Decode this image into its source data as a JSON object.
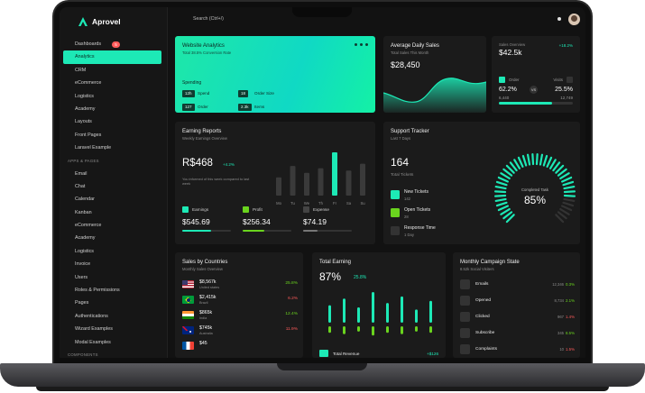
{
  "brand": {
    "name": "Aprovel"
  },
  "search": {
    "placeholder": "Search (Ctrl+/)"
  },
  "sidebar": {
    "items": [
      {
        "label": "Dashboards",
        "badge": "5"
      },
      {
        "label": "Analytics",
        "active": true
      },
      {
        "label": "CRM"
      },
      {
        "label": "eCommerce"
      },
      {
        "label": "Logistics"
      },
      {
        "label": "Academy"
      },
      {
        "label": "Layouts"
      },
      {
        "label": "Front Pages"
      },
      {
        "label": "Laravel Example"
      }
    ],
    "section_apps": "APPS & PAGES",
    "apps": [
      "Email",
      "Chat",
      "Calendar",
      "Kanban",
      "eCommerce",
      "Academy",
      "Logistics",
      "Invoice",
      "Users",
      "Roles & Permissions",
      "Pages",
      "Authentications",
      "Wizard Examples",
      "Modal Examples"
    ],
    "section_components": "COMPONENTS"
  },
  "website_analytics": {
    "title": "Website Analytics",
    "subtitle": "Total 38.5% Conversion Rate",
    "spending_label": "Spending",
    "stats": [
      {
        "value": "12h",
        "label": "Spend"
      },
      {
        "value": "18",
        "label": "Order Size"
      },
      {
        "value": "127",
        "label": "Order"
      },
      {
        "value": "2.3k",
        "label": "Items"
      }
    ]
  },
  "average_daily_sales": {
    "title": "Average Daily Sales",
    "subtitle": "Total Sales This Month",
    "value": "$28,450"
  },
  "sales_overview": {
    "title": "Sales Overview",
    "growth": "+18.2%",
    "value": "$42.5k",
    "order_label": "Order",
    "order_pct": "62.2%",
    "order_count": "6,440",
    "visits_label": "Visits",
    "visits_pct": "25.5%",
    "visits_count": "12,749",
    "vs": "VS",
    "progress": 0.72,
    "accent": "#1de9b6"
  },
  "earning_reports": {
    "title": "Earning Reports",
    "subtitle": "Weekly Earnings Overview",
    "value": "R$468",
    "badge": "+4.2%",
    "note": "You informed of this week compared to last week",
    "days": [
      "Mo",
      "Tu",
      "We",
      "Th",
      "Fr",
      "Sa",
      "Su"
    ],
    "bar_values": [
      40,
      65,
      50,
      60,
      95,
      55,
      70
    ],
    "highlight_index": 4,
    "stats": [
      {
        "label": "Earnings",
        "value": "$545.69",
        "color": "#1de9b6",
        "fill": 0.6
      },
      {
        "label": "Profit",
        "value": "$256.34",
        "color": "#6ad41e",
        "fill": 0.45
      },
      {
        "label": "Expense",
        "value": "$74.19",
        "color": "#444444",
        "fill": 0.3
      }
    ]
  },
  "support_tracker": {
    "title": "Support Tracker",
    "subtitle": "Last 7 Days",
    "total": "164",
    "total_label": "Total Tickets",
    "items": [
      {
        "title": "New Tickets",
        "count": "142",
        "color": "#1de9b6"
      },
      {
        "title": "Open Tickets",
        "count": "28",
        "color": "#6ad41e"
      },
      {
        "title": "Response Time",
        "count": "1 Day",
        "color": "#333333"
      }
    ],
    "gauge_label": "Completed Task",
    "gauge_value": "85%",
    "gauge_fraction": 0.85
  },
  "sales_by_countries": {
    "title": "Sales by Countries",
    "subtitle": "Monthly Sales Overview",
    "rows": [
      {
        "value": "$8,567k",
        "name": "United states",
        "pct": "25.8%",
        "up": true,
        "flag": "us"
      },
      {
        "value": "$2,415k",
        "name": "Brazil",
        "pct": "6.2%",
        "up": false,
        "flag": "br"
      },
      {
        "value": "$865k",
        "name": "India",
        "pct": "12.4%",
        "up": true,
        "flag": "in"
      },
      {
        "value": "$745k",
        "name": "Australia",
        "pct": "11.9%",
        "up": false,
        "flag": "au"
      },
      {
        "value": "$45",
        "name": "",
        "pct": "",
        "up": true,
        "flag": "fr"
      }
    ]
  },
  "total_earning": {
    "title": "Total Earning",
    "value": "87%",
    "pct": "25.8%",
    "top_values": [
      40,
      55,
      35,
      70,
      45,
      60,
      30,
      50
    ],
    "bottom_values": [
      25,
      30,
      20,
      35,
      25,
      30,
      20,
      25
    ],
    "foot_label": "Total Revenue",
    "foot_pct": "+$126"
  },
  "campaign": {
    "title": "Monthly Campaign State",
    "subtitle": "8.52k Social Visiters",
    "rows": [
      {
        "label": "Emails",
        "count": "12,346",
        "pct": "0.3%",
        "up": true
      },
      {
        "label": "Opened",
        "count": "8,734",
        "pct": "2.1%",
        "up": true
      },
      {
        "label": "Clicked",
        "count": "967",
        "pct": "1.4%",
        "up": false
      },
      {
        "label": "Subscribe",
        "count": "345",
        "pct": "8.5%",
        "up": true
      },
      {
        "label": "Complaints",
        "count": "10",
        "pct": "1.5%",
        "up": false
      }
    ]
  }
}
